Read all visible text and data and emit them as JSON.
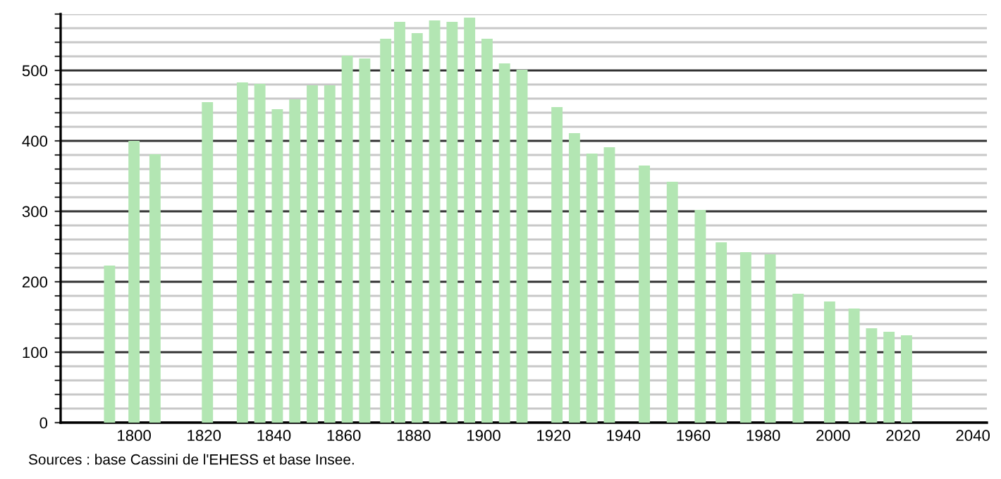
{
  "chart_data": {
    "type": "bar",
    "x": [
      1793,
      1800,
      1806,
      1821,
      1831,
      1836,
      1841,
      1846,
      1851,
      1856,
      1861,
      1866,
      1872,
      1876,
      1881,
      1886,
      1891,
      1896,
      1901,
      1906,
      1911,
      1921,
      1926,
      1931,
      1936,
      1946,
      1954,
      1962,
      1968,
      1975,
      1982,
      1990,
      1999,
      2006,
      2011,
      2016,
      2021
    ],
    "values": [
      223,
      400,
      381,
      455,
      483,
      481,
      445,
      459,
      479,
      479,
      521,
      517,
      545,
      569,
      553,
      571,
      569,
      575,
      545,
      510,
      501,
      448,
      411,
      382,
      391,
      365,
      342,
      302,
      256,
      242,
      239,
      183,
      172,
      162,
      134,
      129,
      124
    ],
    "color": "#b3e6b3",
    "xlim": [
      1779,
      2044
    ],
    "ylim": [
      0,
      580
    ],
    "xticks": [
      1800,
      1820,
      1840,
      1860,
      1880,
      1900,
      1920,
      1940,
      1960,
      1980,
      2000,
      2020,
      2040
    ],
    "yticks": [
      0,
      {
        "value": 20,
        "label": null
      },
      {
        "value": 40,
        "label": null
      },
      {
        "value": 60,
        "label": null
      },
      {
        "value": 80,
        "label": null
      },
      100,
      {
        "value": 120,
        "label": null
      },
      {
        "value": 140,
        "label": null
      },
      {
        "value": 160,
        "label": null
      },
      {
        "value": 180,
        "label": null
      },
      200,
      {
        "value": 220,
        "label": null
      },
      {
        "value": 240,
        "label": null
      },
      {
        "value": 260,
        "label": null
      },
      {
        "value": 280,
        "label": null
      },
      300,
      {
        "value": 320,
        "label": null
      },
      {
        "value": 340,
        "label": null
      },
      {
        "value": 360,
        "label": null
      },
      {
        "value": 380,
        "label": null
      },
      400,
      {
        "value": 420,
        "label": null
      },
      {
        "value": 440,
        "label": null
      },
      {
        "value": 460,
        "label": null
      },
      {
        "value": 480,
        "label": null
      },
      500,
      {
        "value": 520,
        "label": null
      },
      {
        "value": 540,
        "label": null
      },
      {
        "value": 560,
        "label": null
      },
      {
        "value": 580,
        "label": null
      }
    ],
    "grid": "y",
    "annotations": [
      "Sources : base Cassini de l'EHESS et base Insee."
    ]
  }
}
